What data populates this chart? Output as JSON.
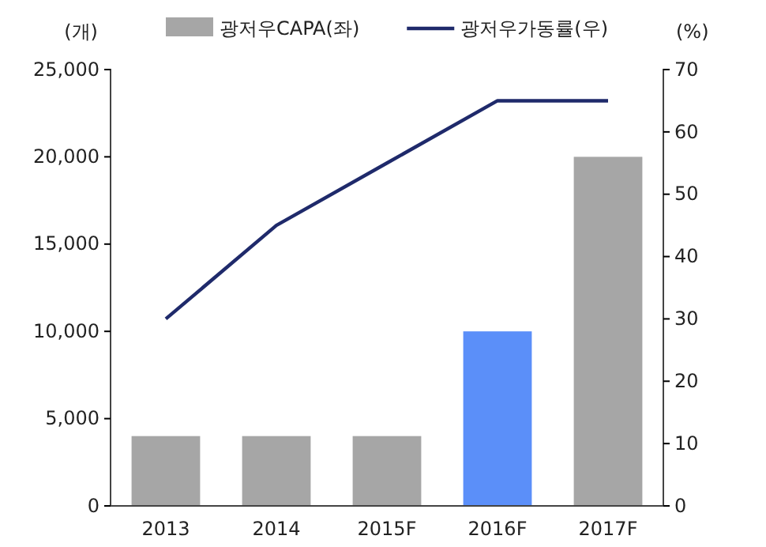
{
  "chart_data": {
    "type": "bar",
    "ylabel": "(개)",
    "y2label": "(%)",
    "categories": [
      "2013",
      "2014",
      "2015F",
      "2016F",
      "2017F"
    ],
    "series": [
      {
        "name": "광저우CAPA(좌)",
        "color": "#a6a6a6",
        "colors": [
          "#a6a6a6",
          "#a6a6a6",
          "#a6a6a6",
          "#5b8ff9",
          "#a6a6a6"
        ],
        "values": [
          4000,
          4000,
          4000,
          10000,
          20000
        ]
      },
      {
        "name": "광저우가동률(우)",
        "type": "line",
        "axis": "y2",
        "color": "#1f2a6b",
        "values": [
          30,
          45,
          55,
          65,
          65
        ]
      }
    ],
    "ylim": [
      0,
      25000
    ],
    "yticks": [
      {
        "value": 0,
        "label": "0"
      },
      {
        "value": 5000,
        "label": "5,000"
      },
      {
        "value": 10000,
        "label": "10,000"
      },
      {
        "value": 15000,
        "label": "15,000"
      },
      {
        "value": 20000,
        "label": "20,000"
      },
      {
        "value": 25000,
        "label": "25,000"
      }
    ],
    "y2lim": [
      0,
      70
    ],
    "y2ticks": [
      0,
      10,
      20,
      30,
      40,
      50,
      60,
      70
    ],
    "legend": "top",
    "grid": false,
    "marker": "none"
  }
}
